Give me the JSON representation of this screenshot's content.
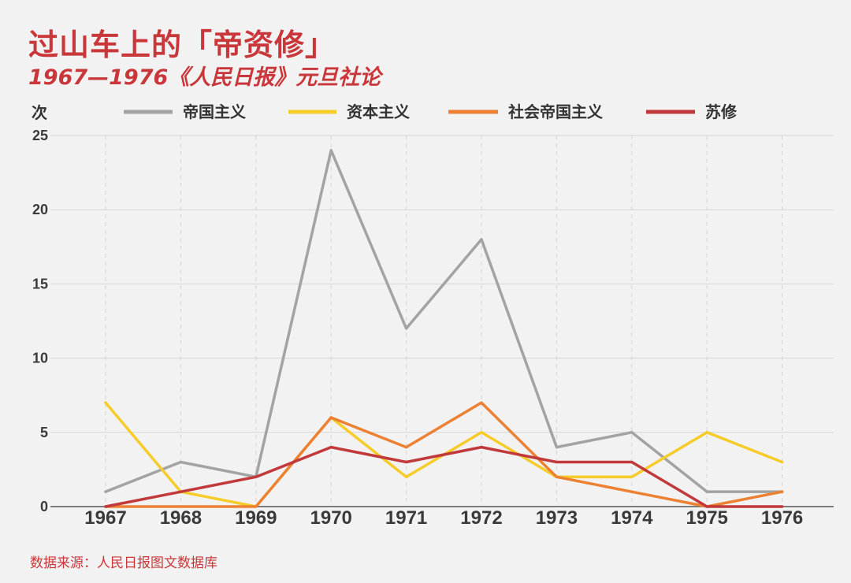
{
  "title": "过山车上的「帝资修」",
  "subtitle": "1967—1976《人民日报》元旦社论",
  "source": "数据来源：人民日报图文数据库",
  "chart_data": {
    "type": "line",
    "ylabel": "次",
    "ylim": [
      0,
      25
    ],
    "yticks": [
      0,
      5,
      10,
      15,
      20,
      25
    ],
    "x": [
      "1967",
      "1968",
      "1969",
      "1970",
      "1971",
      "1972",
      "1973",
      "1974",
      "1975",
      "1976"
    ],
    "legend_position": "top",
    "grid": true,
    "series": [
      {
        "name": "帝国主义",
        "color": "#a3a3a3",
        "values": [
          1,
          3,
          2,
          24,
          12,
          18,
          4,
          5,
          1,
          1
        ]
      },
      {
        "name": "资本主义",
        "color": "#f5cc2a",
        "values": [
          7,
          1,
          0,
          6,
          2,
          5,
          2,
          2,
          5,
          3
        ]
      },
      {
        "name": "社会帝国主义",
        "color": "#ec8133",
        "values": [
          0,
          0,
          0,
          6,
          4,
          7,
          2,
          1,
          0,
          1
        ]
      },
      {
        "name": "苏修",
        "color": "#c1393b",
        "values": [
          0,
          1,
          2,
          4,
          3,
          4,
          3,
          3,
          0,
          0
        ]
      }
    ]
  }
}
